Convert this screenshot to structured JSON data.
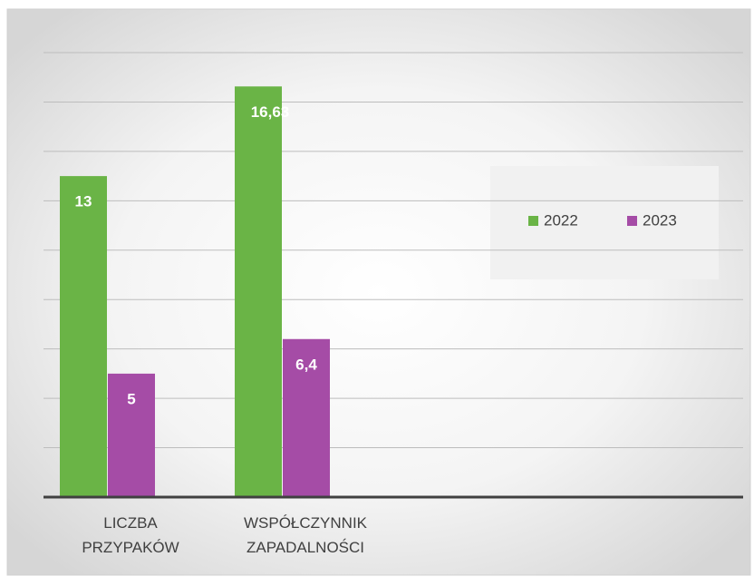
{
  "chart_data": {
    "type": "bar",
    "categories": [
      "LICZBA PRZYPAKÓW",
      "WSPÓŁCZYNNIK ZAPADALNOŚCI"
    ],
    "series": [
      {
        "name": "2022",
        "color": "#6ab446",
        "values": [
          13,
          16.63
        ],
        "value_labels": [
          "13",
          "16,63"
        ]
      },
      {
        "name": "2023",
        "color": "#a54ca6",
        "values": [
          5,
          6.4
        ],
        "value_labels": [
          "5",
          "6,4"
        ]
      }
    ],
    "ylim": [
      0,
      18
    ],
    "yticks": [
      0,
      2,
      4,
      6,
      8,
      10,
      12,
      14,
      16,
      18
    ],
    "grid": true,
    "legend": "right"
  }
}
